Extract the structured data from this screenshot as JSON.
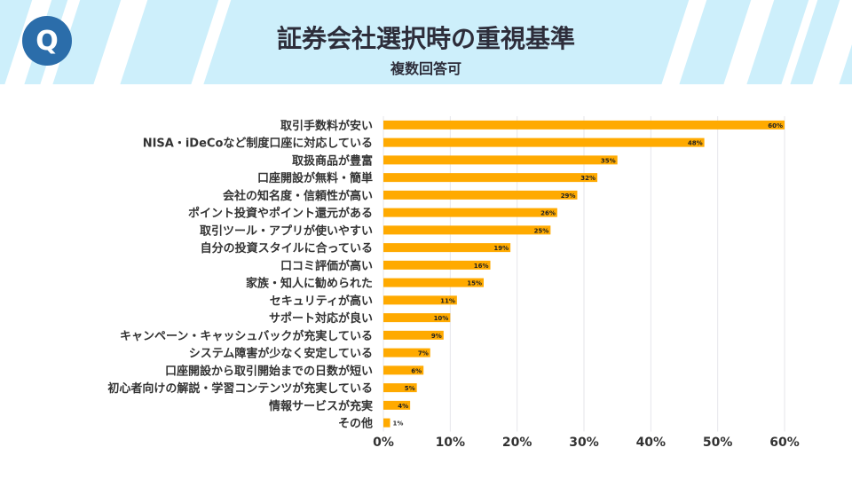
{
  "header": {
    "title": "証券会社選択時の重視基準",
    "subtitle": "複数回答可",
    "logo_letter": "Q"
  },
  "colors": {
    "bar": "#FFAA00",
    "header_bg": "#cdeffb",
    "logo": "#2b6daa"
  },
  "chart_data": {
    "type": "bar",
    "orientation": "horizontal",
    "categories": [
      "取引手数料が安い",
      "NISA・iDeCoなど制度口座に対応している",
      "取扱商品が豊富",
      "口座開設が無料・簡単",
      "会社の知名度・信頼性が高い",
      "ポイント投資やポイント還元がある",
      "取引ツール・アプリが使いやすい",
      "自分の投資スタイルに合っている",
      "口コミ評価が高い",
      "家族・知人に勧められた",
      "セキュリティが高い",
      "サポート対応が良い",
      "キャンペーン・キャッシュバックが充実している",
      "システム障害が少なく安定している",
      "口座開設から取引開始までの日数が短い",
      "初心者向けの解説・学習コンテンツが充実している",
      "情報サービスが充実",
      "その他"
    ],
    "values": [
      60,
      48,
      35,
      32,
      29,
      26,
      25,
      19,
      16,
      15,
      11,
      10,
      9,
      7,
      6,
      5,
      4,
      1
    ],
    "data_labels": [
      "60%",
      "48%",
      "35%",
      "32%",
      "29%",
      "26%",
      "25%",
      "19%",
      "16%",
      "15%",
      "11%",
      "10%",
      "9%",
      "7%",
      "6%",
      "5%",
      "4%",
      "1%"
    ],
    "xlim": [
      0,
      60
    ],
    "xticks": [
      "0%",
      "10%",
      "20%",
      "30%",
      "40%",
      "50%",
      "60%"
    ],
    "grid": true
  }
}
